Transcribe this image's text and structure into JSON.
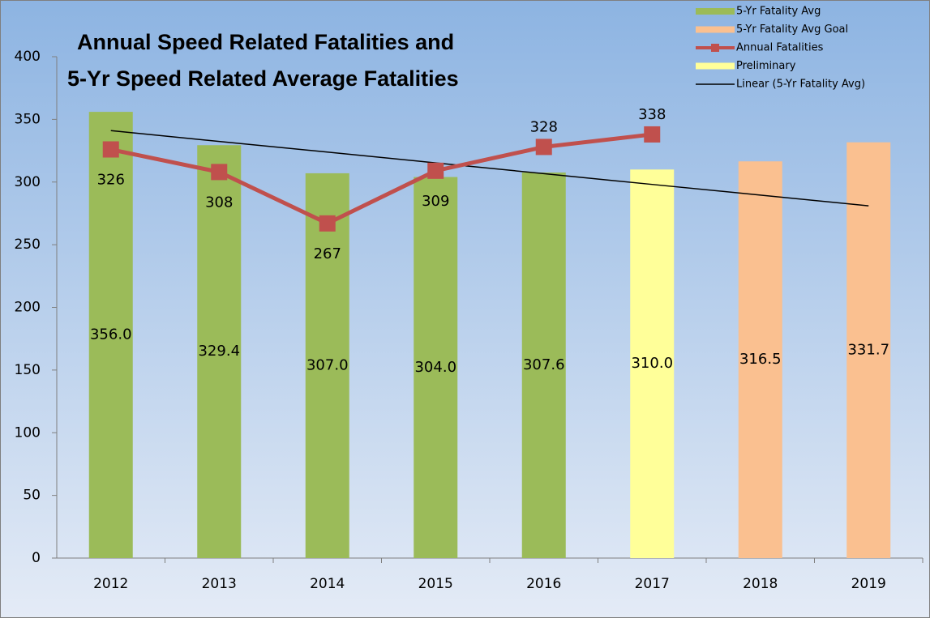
{
  "chart_data": {
    "type": "bar",
    "title": [
      "Annual Speed Related Fatalities and",
      "5-Yr Speed Related Average Fatalities"
    ],
    "categories": [
      "2012",
      "2013",
      "2014",
      "2015",
      "2016",
      "2017",
      "2018",
      "2019"
    ],
    "series": [
      {
        "name": "5-Yr Fatality Avg",
        "type": "bar",
        "color": "#9bbb59",
        "values": [
          356.0,
          329.4,
          307.0,
          304.0,
          307.6,
          null,
          null,
          null
        ],
        "value_labels": [
          "356.0",
          "329.4",
          "307.0",
          "304.0",
          "307.6",
          null,
          null,
          null
        ]
      },
      {
        "name": "5-Yr Fatality Avg Goal",
        "type": "bar",
        "color": "#fac090",
        "values": [
          null,
          null,
          null,
          null,
          null,
          null,
          316.5,
          331.7
        ],
        "value_labels": [
          null,
          null,
          null,
          null,
          null,
          null,
          "316.5",
          "331.7"
        ]
      },
      {
        "name": "Annual Fatalities",
        "type": "line",
        "marker": "square",
        "color": "#c0504d",
        "values": [
          326,
          308,
          267,
          309,
          328,
          338,
          null,
          null
        ]
      },
      {
        "name": "Preliminary",
        "type": "bar",
        "color": "#ffff99",
        "values": [
          null,
          null,
          null,
          null,
          null,
          310.0,
          null,
          null
        ],
        "value_labels": [
          null,
          null,
          null,
          null,
          null,
          "310.0",
          null,
          null
        ]
      },
      {
        "name": "Linear (5-Yr Fatality Avg)",
        "type": "trend",
        "color": "#000000",
        "values": [
          341,
          332.4,
          323.9,
          315.3,
          306.7,
          298.1,
          289.6,
          281
        ]
      }
    ],
    "ylim": [
      0,
      400
    ],
    "yticks": [
      0,
      50,
      100,
      150,
      200,
      250,
      300,
      350,
      400
    ],
    "grid": false,
    "legend": "top-right"
  }
}
